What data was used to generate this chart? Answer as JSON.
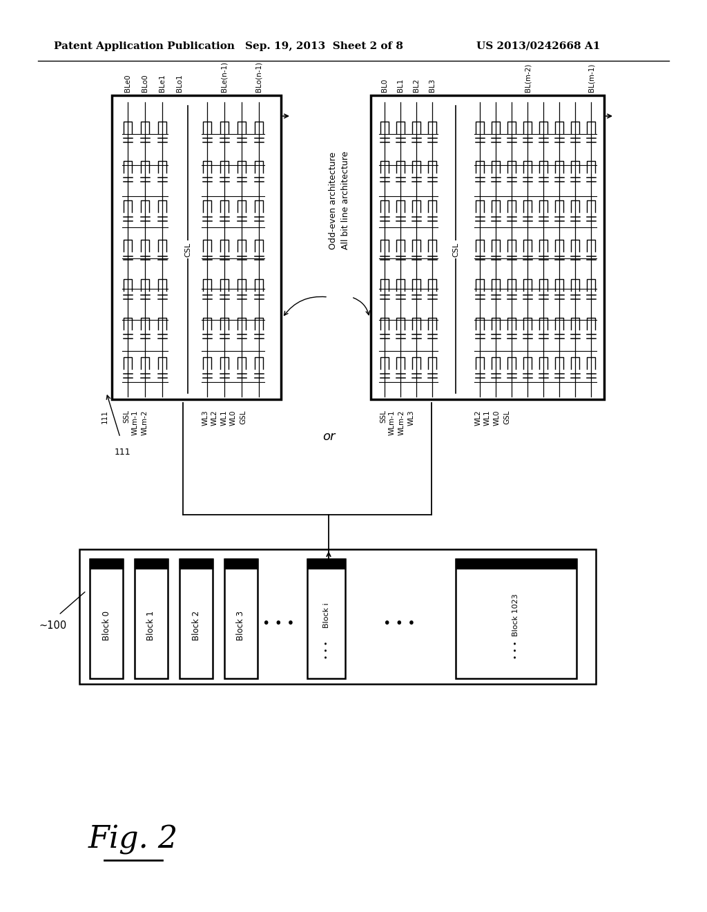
{
  "bg_color": "#ffffff",
  "header_left": "Patent Application Publication",
  "header_mid": "Sep. 19, 2013  Sheet 2 of 8",
  "header_right": "US 2013/0242668 A1",
  "fig_label": "Fig. 2",
  "left_bl_labels": [
    "BLe0",
    "BLo0",
    "BLe1",
    "BLo1",
    "BLe(n-1)",
    "BLo(n-1)"
  ],
  "left_wl_labels": [
    "111",
    "SSL",
    "WLm-1",
    "WLm-2",
    "WL3",
    "WL2",
    "WL1",
    "WL0",
    "GSL"
  ],
  "right_bl_labels": [
    "BL0",
    "BL1",
    "BL2",
    "BL3",
    "BL(m-2)",
    "BL(m-1)"
  ],
  "right_wl_labels": [
    "SSL",
    "WLm-1",
    "WLm-2",
    "WL3",
    "WL2",
    "WL1",
    "WL0",
    "GSL"
  ],
  "ann_odd_even": "Odd-even architecture",
  "ann_all_bl": "All bit line architecture",
  "label_or": "or",
  "blocks": [
    "Block 0",
    "Block 1",
    "Block 2",
    "Block 3",
    "Block i",
    "Block 1023"
  ],
  "label_100": "~100",
  "csl_label": "CSL"
}
